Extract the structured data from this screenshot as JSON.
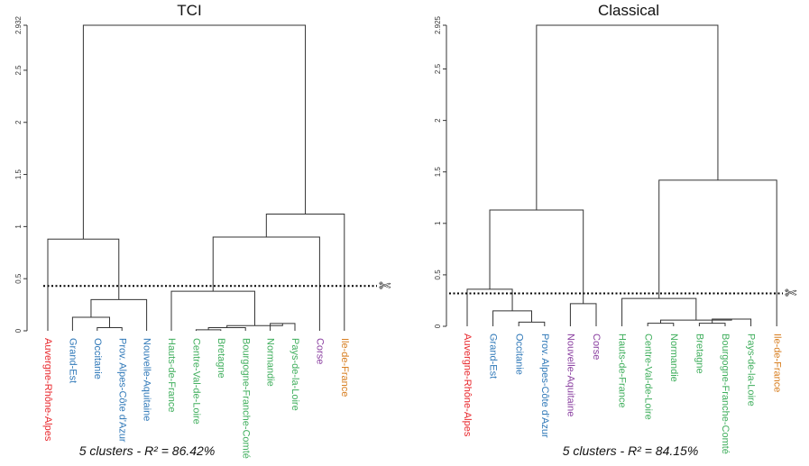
{
  "colors": {
    "red": "#e8262b",
    "blue": "#2f78b8",
    "purple": "#8a3fa0",
    "green": "#3fae5c",
    "orange": "#d77d1e",
    "link": "#333333"
  },
  "chart_data": [
    {
      "type": "dendrogram",
      "title": "TCI",
      "caption": "5 clusters - R² = 86.42%",
      "ylim": [
        0,
        2.932
      ],
      "yticks": [
        "0",
        "0.5",
        "1",
        "1.5",
        "2",
        "2.5",
        "2.932"
      ],
      "cut_height": 0.43,
      "leaves": [
        {
          "label": "Auvergne-Rhône-Alpes",
          "color": "red"
        },
        {
          "label": "Grand-Est",
          "color": "blue"
        },
        {
          "label": "Occitanie",
          "color": "blue"
        },
        {
          "label": "Prov. Alpes-Côte d'Azur",
          "color": "blue"
        },
        {
          "label": "Nouvelle-Aquitaine",
          "color": "blue"
        },
        {
          "label": "Hauts-de-France",
          "color": "green"
        },
        {
          "label": "Centre-Val-de-Loire",
          "color": "green"
        },
        {
          "label": "Bretagne",
          "color": "green"
        },
        {
          "label": "Bourgogne-Franche-Comté",
          "color": "green"
        },
        {
          "label": "Normandie",
          "color": "green"
        },
        {
          "label": "Pays-de-la-Loire",
          "color": "green"
        },
        {
          "label": "Corse",
          "color": "purple"
        },
        {
          "label": "Ile-de-France",
          "color": "orange"
        }
      ],
      "merges": [
        {
          "a": "L6",
          "b": "L7",
          "height": 0.01
        },
        {
          "a": "M0",
          "b": "L8",
          "height": 0.03
        },
        {
          "a": "L9",
          "b": "L10",
          "height": 0.07
        },
        {
          "a": "M1",
          "b": "M2",
          "height": 0.05
        },
        {
          "a": "L2",
          "b": "L3",
          "height": 0.03
        },
        {
          "a": "L1",
          "b": "M4",
          "height": 0.13
        },
        {
          "a": "M5",
          "b": "L4",
          "height": 0.3
        },
        {
          "a": "L5",
          "b": "M3",
          "height": 0.38
        },
        {
          "a": "L0",
          "b": "M6",
          "height": 0.88
        },
        {
          "a": "M7",
          "b": "L11",
          "height": 0.9
        },
        {
          "a": "M9",
          "b": "L12",
          "height": 1.12
        },
        {
          "a": "M8",
          "b": "M10",
          "height": 2.932
        }
      ]
    },
    {
      "type": "dendrogram",
      "title": "Classical",
      "caption": "5 clusters - R² = 84.15%",
      "ylim": [
        0,
        2.925
      ],
      "yticks": [
        "0",
        "0.5",
        "1",
        "1.5",
        "2",
        "2.5",
        "2.925"
      ],
      "cut_height": 0.32,
      "leaves": [
        {
          "label": "Auvergne-Rhône-Alpes",
          "color": "red"
        },
        {
          "label": "Grand-Est",
          "color": "blue"
        },
        {
          "label": "Occitanie",
          "color": "blue"
        },
        {
          "label": "Prov. Alpes-Côte d'Azur",
          "color": "blue"
        },
        {
          "label": "Nouvelle-Aquitaine",
          "color": "purple"
        },
        {
          "label": "Corse",
          "color": "purple"
        },
        {
          "label": "Hauts-de-France",
          "color": "green"
        },
        {
          "label": "Centre-Val-de-Loire",
          "color": "green"
        },
        {
          "label": "Normandie",
          "color": "green"
        },
        {
          "label": "Bretagne",
          "color": "green"
        },
        {
          "label": "Bourgogne-Franche-Comté",
          "color": "green"
        },
        {
          "label": "Pays-de-la-Loire",
          "color": "green"
        },
        {
          "label": "Ile-de-France",
          "color": "orange"
        }
      ],
      "merges": [
        {
          "a": "L7",
          "b": "L8",
          "height": 0.03
        },
        {
          "a": "L9",
          "b": "L10",
          "height": 0.03
        },
        {
          "a": "M1",
          "b": "L11",
          "height": 0.07
        },
        {
          "a": "M0",
          "b": "M2",
          "height": 0.06
        },
        {
          "a": "L6",
          "b": "M3",
          "height": 0.27
        },
        {
          "a": "L2",
          "b": "L3",
          "height": 0.04
        },
        {
          "a": "L1",
          "b": "M5",
          "height": 0.15
        },
        {
          "a": "L4",
          "b": "L5",
          "height": 0.22
        },
        {
          "a": "L0",
          "b": "M6",
          "height": 0.36
        },
        {
          "a": "M8",
          "b": "M7",
          "height": 1.13
        },
        {
          "a": "M4",
          "b": "L12",
          "height": 1.42
        },
        {
          "a": "M9",
          "b": "M10",
          "height": 2.925
        }
      ]
    }
  ]
}
